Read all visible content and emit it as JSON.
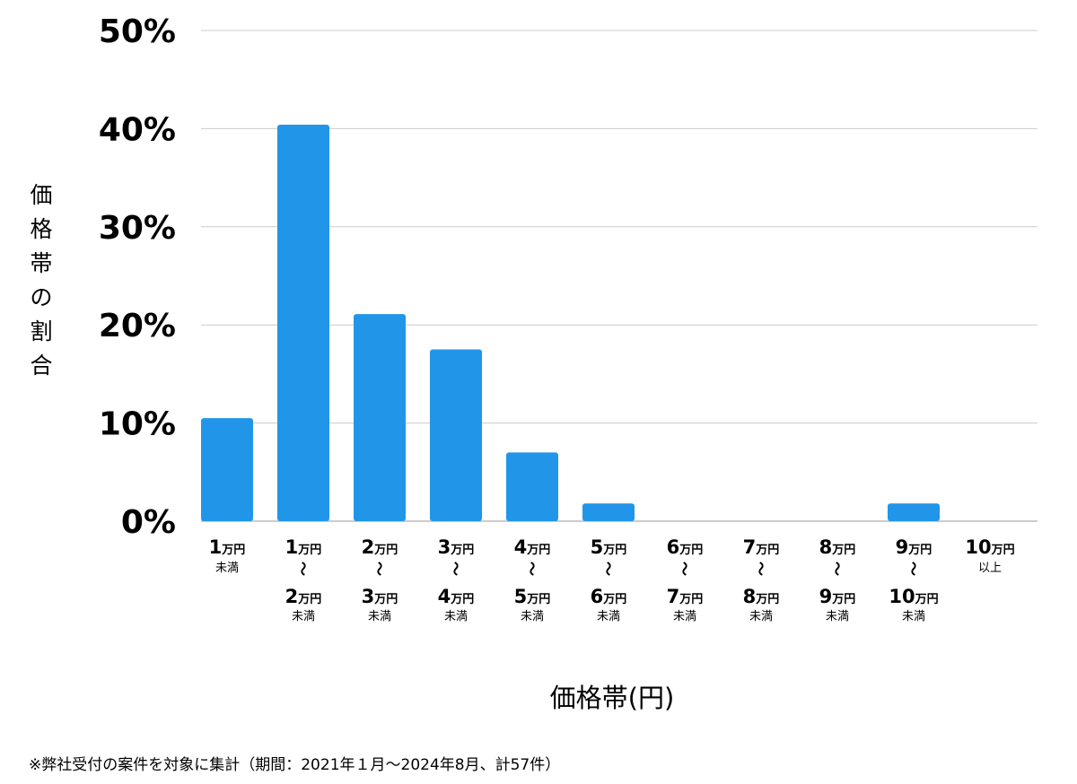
{
  "chart_data": {
    "type": "bar",
    "categories": [
      {
        "top": "1",
        "top_unit": "万円",
        "sep": "",
        "bottom": "",
        "bottom_unit": "",
        "note": "未満"
      },
      {
        "top": "1",
        "top_unit": "万円",
        "sep": "～",
        "bottom": "2",
        "bottom_unit": "万円",
        "note": "未満"
      },
      {
        "top": "2",
        "top_unit": "万円",
        "sep": "～",
        "bottom": "3",
        "bottom_unit": "万円",
        "note": "未満"
      },
      {
        "top": "3",
        "top_unit": "万円",
        "sep": "～",
        "bottom": "4",
        "bottom_unit": "万円",
        "note": "未満"
      },
      {
        "top": "4",
        "top_unit": "万円",
        "sep": "～",
        "bottom": "5",
        "bottom_unit": "万円",
        "note": "未満"
      },
      {
        "top": "5",
        "top_unit": "万円",
        "sep": "～",
        "bottom": "6",
        "bottom_unit": "万円",
        "note": "未満"
      },
      {
        "top": "6",
        "top_unit": "万円",
        "sep": "～",
        "bottom": "7",
        "bottom_unit": "万円",
        "note": "未満"
      },
      {
        "top": "7",
        "top_unit": "万円",
        "sep": "～",
        "bottom": "8",
        "bottom_unit": "万円",
        "note": "未満"
      },
      {
        "top": "8",
        "top_unit": "万円",
        "sep": "～",
        "bottom": "9",
        "bottom_unit": "万円",
        "note": "未満"
      },
      {
        "top": "9",
        "top_unit": "万円",
        "sep": "～",
        "bottom": "10",
        "bottom_unit": "万円",
        "note": "未満"
      },
      {
        "top": "10",
        "top_unit": "万円",
        "sep": "",
        "bottom": "",
        "bottom_unit": "",
        "note": "以上"
      }
    ],
    "values": [
      10.5,
      40.4,
      21.1,
      17.5,
      7.0,
      1.8,
      0,
      0,
      0,
      1.8,
      0
    ],
    "ylim": [
      0,
      50
    ],
    "yticks": [
      0,
      10,
      20,
      30,
      40,
      50
    ],
    "ytick_suffix": "%",
    "ylabel": "価格帯の割合",
    "xlabel": "価格帯(円)",
    "grid": true,
    "bar_color": "#2196e8",
    "grid_color": "#cccccc"
  },
  "footnote": "※弊社受付の案件を対象に集計（期間：2021年１月～2024年8月、計57件）"
}
